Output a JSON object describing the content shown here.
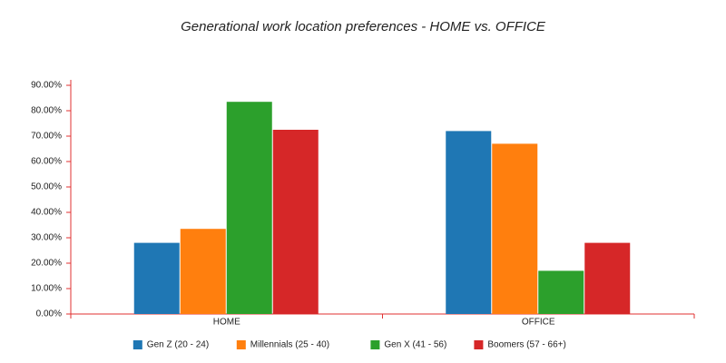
{
  "chart_data": {
    "type": "bar",
    "title": "Generational work location preferences - HOME vs. OFFICE",
    "categories": [
      "HOME",
      "OFFICE"
    ],
    "series": [
      {
        "name": "Gen Z (20 - 24)",
        "color": "#1f77b4",
        "values": [
          28,
          72
        ]
      },
      {
        "name": "Millennials (25 - 40)",
        "color": "#ff7f0e",
        "values": [
          33.5,
          67
        ]
      },
      {
        "name": "Gen X (41 - 56)",
        "color": "#2ca02c",
        "values": [
          83.5,
          17
        ]
      },
      {
        "name": "Boomers (57 - 66+)",
        "color": "#d62728",
        "values": [
          72.5,
          28
        ]
      }
    ],
    "ylim": [
      0,
      90
    ],
    "yticks": [
      {
        "value": 0,
        "label": "0.00%"
      },
      {
        "value": 10,
        "label": "10.00%"
      },
      {
        "value": 20,
        "label": "20.00%"
      },
      {
        "value": 30,
        "label": "30.00%"
      },
      {
        "value": 40,
        "label": "40.00%"
      },
      {
        "value": 50,
        "label": "50.00%"
      },
      {
        "value": 60,
        "label": "60.00%"
      },
      {
        "value": 70,
        "label": "70.00%"
      },
      {
        "value": 80,
        "label": "80.00%"
      },
      {
        "value": 90,
        "label": "90.00%"
      }
    ],
    "axis_color": "#e03131",
    "grid": false,
    "legend": "bottom"
  }
}
